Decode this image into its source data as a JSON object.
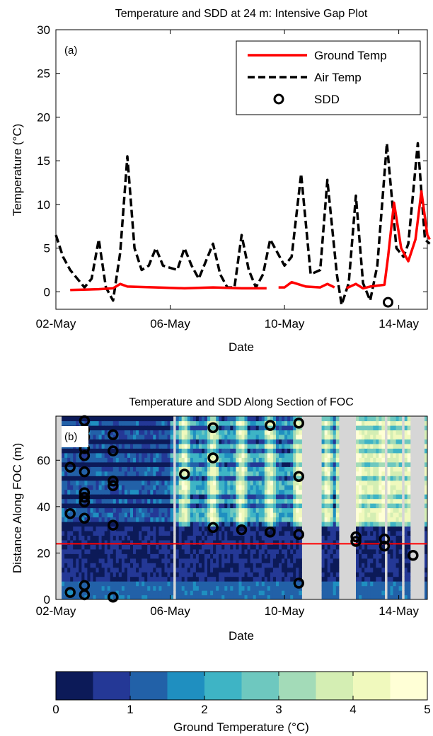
{
  "chart_data": [
    {
      "panel": "(a)",
      "type": "line",
      "title": "Temperature and SDD at 24 m: Intensive Gap Plot",
      "xlabel": "Date",
      "ylabel": "Temperature (°C)",
      "xlim": [
        "2013-05-02",
        "2013-05-15"
      ],
      "ylim": [
        -2,
        30
      ],
      "xticks": [
        {
          "date": "2013-05-02",
          "label": "02-May"
        },
        {
          "date": "2013-05-06",
          "label": "06-May"
        },
        {
          "date": "2013-05-10",
          "label": "10-May"
        },
        {
          "date": "2013-05-14",
          "label": "14-May"
        }
      ],
      "yticks": [
        0,
        5,
        10,
        15,
        20,
        25,
        30
      ],
      "legend_position": "top-right",
      "series": [
        {
          "name": "Ground Temp",
          "style": "solid",
          "color": "#ff0000",
          "points": [
            [
              "2013-05-02 12:00",
              0.2
            ],
            [
              "2013-05-03 12:00",
              0.3
            ],
            [
              "2013-05-04 00:00",
              0.4
            ],
            [
              "2013-05-04 06:00",
              0.9
            ],
            [
              "2013-05-04 12:00",
              0.6
            ],
            [
              "2013-05-05 12:00",
              0.5
            ],
            [
              "2013-05-06 12:00",
              0.4
            ],
            [
              "2013-05-07 12:00",
              0.5
            ],
            [
              "2013-05-08 12:00",
              0.4
            ],
            [
              "2013-05-09 00:00",
              0.4
            ],
            [
              "2013-05-09 09:00",
              0.4
            ],
            null,
            [
              "2013-05-09 19:00",
              0.5
            ],
            [
              "2013-05-10 00:00",
              0.5
            ],
            [
              "2013-05-10 06:00",
              1.1
            ],
            [
              "2013-05-10 18:00",
              0.6
            ],
            [
              "2013-05-11 06:00",
              0.5
            ],
            [
              "2013-05-11 12:00",
              0.9
            ],
            [
              "2013-05-11 18:00",
              0.5
            ],
            null,
            [
              "2013-05-12 04:00",
              0.4
            ],
            [
              "2013-05-12 12:00",
              0.9
            ],
            [
              "2013-05-12 18:00",
              0.4
            ],
            [
              "2013-05-13 00:00",
              0.6
            ],
            [
              "2013-05-13 12:00",
              0.8
            ],
            [
              "2013-05-13 15:00",
              4.0
            ],
            [
              "2013-05-13 20:00",
              10.2
            ],
            [
              "2013-05-14 02:00",
              5.0
            ],
            [
              "2013-05-14 08:00",
              3.5
            ],
            [
              "2013-05-14 14:00",
              6.0
            ],
            [
              "2013-05-14 19:00",
              11.5
            ],
            [
              "2013-05-15 00:00",
              6.5
            ],
            [
              "2013-05-15 02:00",
              6.0
            ]
          ]
        },
        {
          "name": "Air Temp",
          "style": "dashed",
          "color": "#000000",
          "points": [
            [
              "2013-05-02 00:00",
              6.5
            ],
            [
              "2013-05-02 06:00",
              4.0
            ],
            [
              "2013-05-02 12:00",
              2.5
            ],
            [
              "2013-05-02 18:00",
              1.5
            ],
            [
              "2013-05-03 00:00",
              0.5
            ],
            [
              "2013-05-03 06:00",
              1.5
            ],
            [
              "2013-05-03 12:00",
              6.0
            ],
            [
              "2013-05-03 18:00",
              0.5
            ],
            [
              "2013-05-04 00:00",
              -1.0
            ],
            [
              "2013-05-04 06:00",
              4.5
            ],
            [
              "2013-05-04 12:00",
              15.5
            ],
            [
              "2013-05-04 18:00",
              5.0
            ],
            [
              "2013-05-05 00:00",
              2.5
            ],
            [
              "2013-05-05 06:00",
              3.0
            ],
            [
              "2013-05-05 12:00",
              5.0
            ],
            [
              "2013-05-05 18:00",
              3.0
            ],
            [
              "2013-05-06 06:00",
              2.5
            ],
            [
              "2013-05-06 12:00",
              5.0
            ],
            [
              "2013-05-06 18:00",
              3.0
            ],
            [
              "2013-05-07 00:00",
              1.5
            ],
            [
              "2013-05-07 12:00",
              5.5
            ],
            [
              "2013-05-07 18:00",
              2.0
            ],
            [
              "2013-05-08 00:00",
              0.5
            ],
            [
              "2013-05-08 06:00",
              0.5
            ],
            [
              "2013-05-08 12:00",
              6.5
            ],
            [
              "2013-05-08 18:00",
              2.5
            ],
            [
              "2013-05-09 00:00",
              0.5
            ],
            [
              "2013-05-09 06:00",
              2.0
            ],
            [
              "2013-05-09 12:00",
              6.0
            ],
            [
              "2013-05-10 00:00",
              3.0
            ],
            [
              "2013-05-10 06:00",
              4.0
            ],
            [
              "2013-05-10 14:00",
              13.5
            ],
            [
              "2013-05-10 22:00",
              2.0
            ],
            [
              "2013-05-11 06:00",
              2.5
            ],
            [
              "2013-05-11 12:00",
              12.8
            ],
            [
              "2013-05-11 20:00",
              2.0
            ],
            [
              "2013-05-12 00:00",
              -1.5
            ],
            [
              "2013-05-12 06:00",
              1.0
            ],
            [
              "2013-05-12 12:00",
              11.0
            ],
            [
              "2013-05-12 18:00",
              1.0
            ],
            [
              "2013-05-13 00:00",
              -1.0
            ],
            [
              "2013-05-13 06:00",
              3.0
            ],
            [
              "2013-05-13 14:00",
              17.0
            ],
            [
              "2013-05-13 22:00",
              5.0
            ],
            [
              "2013-05-14 04:00",
              4.0
            ],
            [
              "2013-05-14 08:00",
              5.5
            ],
            [
              "2013-05-14 16:00",
              17.0
            ],
            [
              "2013-05-14 22:00",
              6.0
            ],
            [
              "2013-05-15 02:00",
              5.5
            ]
          ]
        },
        {
          "name": "SDD",
          "style": "marker-circle",
          "color": "#000000",
          "points": [
            [
              "2013-05-13 15:00",
              -1.2
            ]
          ]
        }
      ],
      "annotations": []
    },
    {
      "panel": "(b)",
      "type": "heatmap",
      "title": "Temperature and SDD Along Section of FOC",
      "xlabel": "Date",
      "ylabel": "Distance Along FOC (m)",
      "xlim": [
        "2013-05-02",
        "2013-05-15"
      ],
      "ylim": [
        0,
        79
      ],
      "xticks": [
        {
          "date": "2013-05-02",
          "label": "02-May"
        },
        {
          "date": "2013-05-06",
          "label": "06-May"
        },
        {
          "date": "2013-05-10",
          "label": "10-May"
        },
        {
          "date": "2013-05-14",
          "label": "14-May"
        }
      ],
      "yticks": [
        0,
        20,
        40,
        60
      ],
      "reference_line": {
        "y": 24,
        "color": "#ff0000"
      },
      "no_data_color": "#d6d6d6",
      "sdd_points": [
        [
          "2013-05-02 12:00",
          3
        ],
        [
          "2013-05-02 12:00",
          37
        ],
        [
          "2013-05-02 12:00",
          57
        ],
        [
          "2013-05-03 00:00",
          2
        ],
        [
          "2013-05-03 00:00",
          6
        ],
        [
          "2013-05-03 00:00",
          35
        ],
        [
          "2013-05-03 00:00",
          42
        ],
        [
          "2013-05-03 00:00",
          44
        ],
        [
          "2013-05-03 00:00",
          46
        ],
        [
          "2013-05-03 00:00",
          55
        ],
        [
          "2013-05-03 00:00",
          62
        ],
        [
          "2013-05-03 00:00",
          65
        ],
        [
          "2013-05-03 00:00",
          70
        ],
        [
          "2013-05-03 00:00",
          73
        ],
        [
          "2013-05-03 00:00",
          77
        ],
        [
          "2013-05-04 00:00",
          1
        ],
        [
          "2013-05-04 00:00",
          32
        ],
        [
          "2013-05-04 00:00",
          49
        ],
        [
          "2013-05-04 00:00",
          51
        ],
        [
          "2013-05-04 00:00",
          64
        ],
        [
          "2013-05-04 00:00",
          71
        ],
        [
          "2013-05-06 12:00",
          54
        ],
        [
          "2013-05-07 12:00",
          31
        ],
        [
          "2013-05-07 12:00",
          61
        ],
        [
          "2013-05-07 12:00",
          74
        ],
        [
          "2013-05-08 12:00",
          30
        ],
        [
          "2013-05-09 12:00",
          29
        ],
        [
          "2013-05-09 12:00",
          75
        ],
        [
          "2013-05-10 12:00",
          7
        ],
        [
          "2013-05-10 12:00",
          28
        ],
        [
          "2013-05-10 12:00",
          53
        ],
        [
          "2013-05-10 12:00",
          76
        ],
        [
          "2013-05-12 12:00",
          25
        ],
        [
          "2013-05-12 12:00",
          27
        ],
        [
          "2013-05-13 12:00",
          23
        ],
        [
          "2013-05-13 12:00",
          26
        ],
        [
          "2013-05-14 12:00",
          19
        ]
      ]
    }
  ],
  "colorbar": {
    "label": "Ground Temperature (°C)",
    "range": [
      0,
      5
    ],
    "ticks": [
      0,
      1,
      2,
      3,
      4,
      5
    ],
    "colors": [
      "#0c1a58",
      "#243896",
      "#2261a8",
      "#1f8fc0",
      "#3eb4c5",
      "#6ec8bf",
      "#a3dbb8",
      "#d4eeb3",
      "#f0f9bd",
      "#ffffd6"
    ]
  }
}
